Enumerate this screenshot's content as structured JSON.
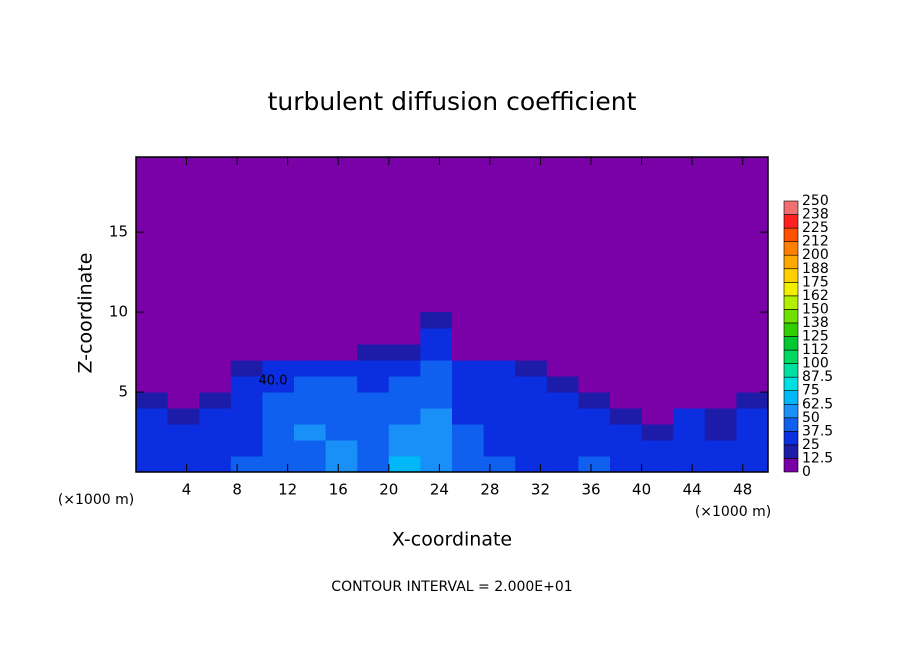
{
  "chart_data": {
    "type": "heatmap",
    "title": "turbulent diffusion coefficient",
    "xlabel": "X-coordinate",
    "ylabel": "Z-coordinate",
    "x_unit": "(×1000 m)",
    "x_unit_right": "(×1000 m)",
    "footnote": "CONTOUR INTERVAL = 2.000E+01",
    "annotation": "40.0",
    "xlim": [
      0,
      50
    ],
    "ylim": [
      0,
      19.7
    ],
    "xticks": [
      4,
      8,
      12,
      16,
      20,
      24,
      28,
      32,
      36,
      40,
      44,
      48
    ],
    "yticks": [
      5,
      10,
      15
    ],
    "x": [
      1.25,
      3.75,
      6.25,
      8.75,
      11.25,
      13.75,
      16.25,
      18.75,
      21.25,
      23.75,
      26.25,
      28.75,
      31.25,
      33.75,
      36.25,
      38.75,
      41.25,
      43.75,
      46.25,
      48.75
    ],
    "y": [
      0.5,
      1.5,
      2.5,
      3.5,
      4.5,
      5.5,
      6.5,
      7.5,
      8.5,
      9.5
    ],
    "z": [
      [
        35,
        30,
        35,
        40,
        40,
        45,
        50,
        45,
        70,
        50,
        40,
        40,
        35,
        35,
        40,
        35,
        30,
        35,
        30,
        35
      ],
      [
        30,
        30,
        30,
        35,
        40,
        45,
        50,
        40,
        55,
        50,
        40,
        35,
        35,
        30,
        35,
        30,
        25,
        30,
        25,
        30
      ],
      [
        30,
        25,
        30,
        35,
        40,
        50,
        45,
        40,
        50,
        55,
        40,
        35,
        30,
        30,
        35,
        30,
        20,
        35,
        20,
        30
      ],
      [
        25,
        20,
        30,
        35,
        40,
        45,
        45,
        45,
        45,
        50,
        35,
        35,
        30,
        30,
        30,
        15,
        10,
        25,
        15,
        30
      ],
      [
        15,
        5,
        20,
        30,
        40,
        40,
        45,
        40,
        40,
        45,
        35,
        35,
        30,
        25,
        15,
        5,
        5,
        10,
        5,
        15
      ],
      [
        5,
        5,
        5,
        25,
        35,
        40,
        40,
        35,
        40,
        40,
        30,
        30,
        25,
        20,
        5,
        5,
        5,
        5,
        5,
        5
      ],
      [
        5,
        5,
        5,
        15,
        30,
        35,
        35,
        35,
        35,
        40,
        25,
        25,
        15,
        10,
        5,
        5,
        5,
        5,
        5,
        5
      ],
      [
        5,
        5,
        5,
        5,
        5,
        10,
        10,
        15,
        20,
        35,
        10,
        10,
        5,
        5,
        5,
        5,
        5,
        5,
        5,
        5
      ],
      [
        5,
        5,
        5,
        5,
        5,
        5,
        5,
        5,
        5,
        25,
        5,
        5,
        5,
        5,
        5,
        5,
        5,
        5,
        5,
        5
      ],
      [
        5,
        5,
        5,
        5,
        5,
        5,
        5,
        5,
        5,
        15,
        5,
        5,
        5,
        5,
        5,
        5,
        5,
        5,
        5,
        5
      ]
    ],
    "colorbar_ticks": [
      0,
      12.5,
      25,
      37.5,
      50,
      62.5,
      75,
      87.5,
      100,
      {
        "value": 112.5,
        "label": "112"
      },
      125,
      {
        "value": 137.5,
        "label": "138"
      },
      150,
      {
        "value": 162.5,
        "label": "162"
      },
      175,
      {
        "value": 187.5,
        "label": "188"
      },
      200,
      {
        "value": 212.5,
        "label": "212"
      },
      225,
      {
        "value": 237.5,
        "label": "238"
      },
      250
    ],
    "colors": [
      "#7a00a8",
      "#1c1ca8",
      "#0a2ee0",
      "#1060f0",
      "#1890f8",
      "#00b8f8",
      "#00e0e0",
      "#00e0a0",
      "#00d860",
      "#00c830",
      "#30d000",
      "#70e000",
      "#b0f000",
      "#f0f000",
      "#ffd000",
      "#ffa800",
      "#ff8000",
      "#ff5000",
      "#ff2020",
      "#f07070"
    ]
  }
}
